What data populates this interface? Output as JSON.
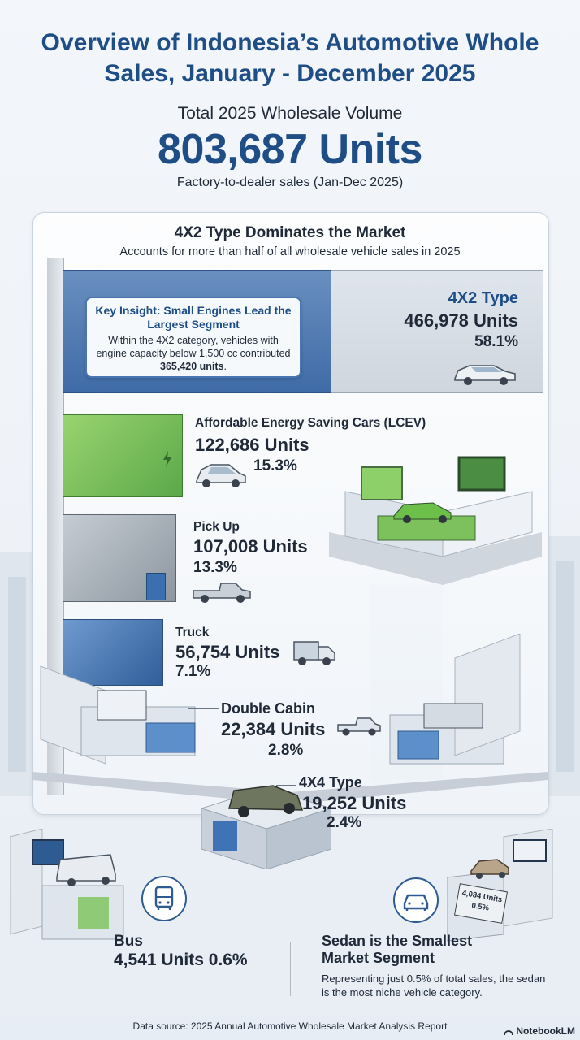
{
  "title": "Overview of Indonesia’s Automotive Whole Sales, January - December 2025",
  "total": {
    "label": "Total 2025 Wholesale Volume",
    "value": "803,687 Units",
    "caption": "Factory-to-dealer sales (Jan-Dec 2025)"
  },
  "section": {
    "title": "4X2 Type Dominates the Market",
    "subtitle": "Accounts for more than half of all wholesale vehicle sales in 2025"
  },
  "insight": {
    "title": "Key Insight: Small Engines Lead the Largest Segment",
    "body_prefix": "Within the 4X2 category, vehicles with engine capacity below 1,500 cc contributed ",
    "body_value": "365,420 units",
    "body_suffix": "."
  },
  "categories": {
    "type_4x2": {
      "name": "4X2 Type",
      "units": "466,978 Units",
      "pct": "58.1%"
    },
    "lcev": {
      "name": "Affordable Energy Saving Cars (LCEV)",
      "units": "122,686 Units",
      "pct": "15.3%"
    },
    "pickup": {
      "name": "Pick Up",
      "units": "107,008 Units",
      "pct": "13.3%"
    },
    "truck": {
      "name": "Truck",
      "units": "56,754 Units",
      "pct": "7.1%"
    },
    "double_cabin": {
      "name": "Double Cabin",
      "units": "22,384 Units",
      "pct": "2.8%"
    },
    "type_4x4": {
      "name": "4X4 Type",
      "units": "19,252 Units",
      "pct": "2.4%"
    },
    "bus": {
      "name": "Bus",
      "units_pct": "4,541 Units 0.6%"
    },
    "sedan": {
      "name": "Sedan is the Smallest Market Segment",
      "description": "Representing just 0.5% of total sales, the sedan is the most niche vehicle category.",
      "sign_units": "4,084 Units",
      "sign_pct": "0.5%"
    }
  },
  "footer": {
    "source": "Data source: 2025 Annual Automotive Wholesale Market Analysis Report",
    "brand": "NotebookLM"
  },
  "colors": {
    "accent": "#1f4e86",
    "lcev_green": "#6cc04a",
    "blue_bar": "#3f6ba6"
  }
}
